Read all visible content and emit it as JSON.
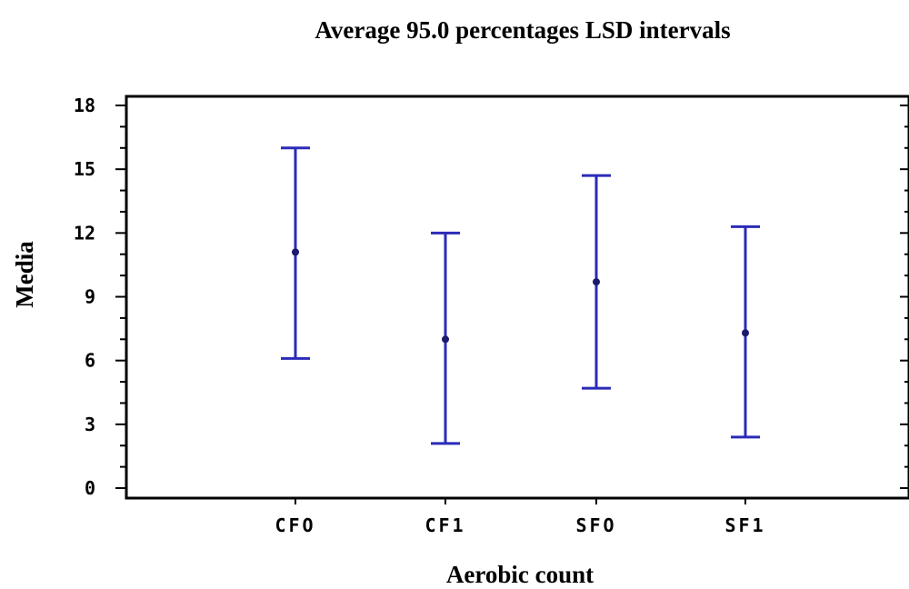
{
  "chart_data": {
    "type": "errorbar",
    "title": "Average 95.0 percentages LSD intervals",
    "xlabel": "Aerobic count",
    "ylabel": "Media",
    "categories": [
      "CFO",
      "CF1",
      "SFO",
      "SF1"
    ],
    "means": [
      11.1,
      7.0,
      9.7,
      7.3
    ],
    "lower": [
      6.1,
      2.1,
      4.7,
      2.4
    ],
    "upper": [
      16.0,
      12.0,
      14.7,
      12.3
    ],
    "ylim": [
      0,
      18
    ],
    "yticks": [
      0,
      3,
      6,
      9,
      12,
      15,
      18
    ],
    "grid": false,
    "legend": "none",
    "colors": {
      "series": "#2b2bb8",
      "point": "#1a1a6e",
      "axis": "#000000"
    }
  }
}
